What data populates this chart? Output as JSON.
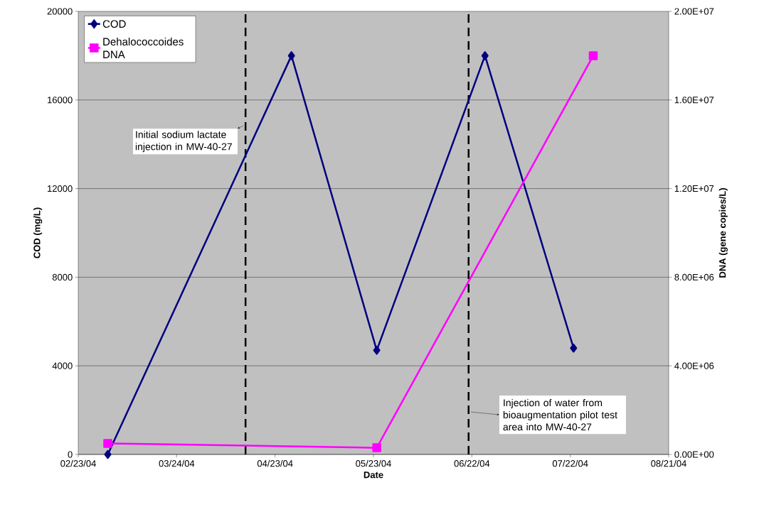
{
  "chart_data": {
    "type": "line",
    "xlabel": "Date",
    "ylabel": "COD (mg/L)",
    "y2label": "DNA (gene copies/L)",
    "xlim": [
      "2004-02-23",
      "2004-08-21"
    ],
    "xticks": [
      {
        "value": "2004-02-23",
        "label": "02/23/04"
      },
      {
        "value": "2004-03-24",
        "label": "03/24/04"
      },
      {
        "value": "2004-04-23",
        "label": "04/23/04"
      },
      {
        "value": "2004-05-23",
        "label": "05/23/04"
      },
      {
        "value": "2004-06-22",
        "label": "06/22/04"
      },
      {
        "value": "2004-07-22",
        "label": "07/22/04"
      },
      {
        "value": "2004-08-21",
        "label": "08/21/04"
      }
    ],
    "ylim": [
      0,
      20000
    ],
    "yticks": [
      0,
      4000,
      8000,
      12000,
      16000,
      20000
    ],
    "y2lim": [
      0,
      20000000
    ],
    "y2ticks": [
      {
        "value": 0,
        "label": "0.00E+00"
      },
      {
        "value": 4000000,
        "label": "4.00E+06"
      },
      {
        "value": 8000000,
        "label": "8.00E+06"
      },
      {
        "value": 12000000,
        "label": "1.20E+07"
      },
      {
        "value": 16000000,
        "label": "1.60E+07"
      },
      {
        "value": 20000000,
        "label": "2.00E+07"
      }
    ],
    "series": [
      {
        "name": "COD",
        "color": "#000080",
        "marker": "diamond",
        "x": [
          "2004-03-03",
          "2004-04-28",
          "2004-05-24",
          "2004-06-26",
          "2004-07-23"
        ],
        "values": [
          0,
          18000,
          4700,
          18000,
          4800
        ]
      },
      {
        "name": "Dehalococcoides DNA",
        "color": "#ff00ff",
        "marker": "square",
        "axis": "y2",
        "x": [
          "2004-03-03",
          "2004-05-24",
          "2004-07-29"
        ],
        "values": [
          500000,
          300000,
          18000000
        ]
      }
    ],
    "ref_lines": [
      {
        "axis": "x",
        "value": "2004-04-14",
        "label": "Initial sodium lactate injection in MW-40-27",
        "color": "#000000",
        "line_style": "dashed"
      },
      {
        "axis": "x",
        "value": "2004-06-21",
        "label": "Injection of water from bioaugmentation pilot test area into MW-40-27",
        "color": "#000000",
        "line_style": "dashed"
      }
    ],
    "grid": "y",
    "legend": "top left",
    "line_style": "solid"
  }
}
